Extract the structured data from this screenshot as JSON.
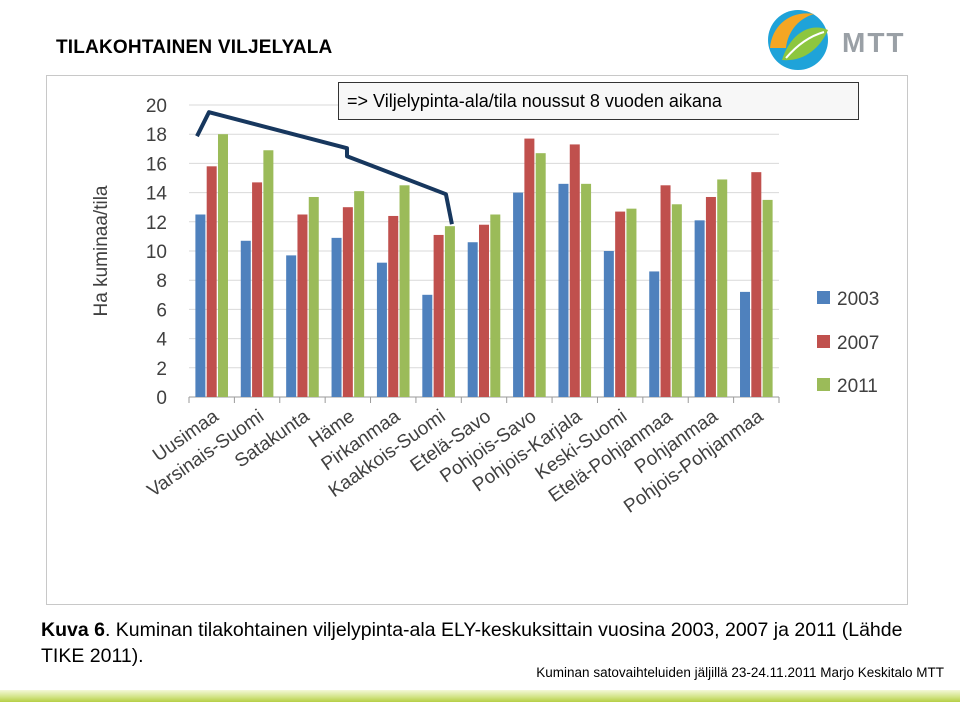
{
  "slide": {
    "title": "TILAKOHTAINEN VILJELYALA",
    "logo_text": "MTT",
    "callout": "=> Viljelypinta-ala/tila noussut 8 vuoden aikana",
    "caption_label": "Kuva 6",
    "caption_text": ". Kuminan tilakohtainen viljelypinta-ala ELY-keskuksittain vuosina 2003, 2007 ja 2011 (Lähde TIKE 2011).",
    "footer": "Kuminan satovaihteluiden jäljillä 23-24.11.2011 Marjo Keskitalo MTT"
  },
  "colors": {
    "series_2003": "#4f81bd",
    "series_2007": "#c0504d",
    "series_2011": "#9bbb59",
    "bracket": "#17375e",
    "gridline": "#d9d9d9",
    "axis_text": "#404040",
    "logo_text": "#9aa0a6"
  },
  "chart_data": {
    "type": "bar",
    "title": "",
    "xlabel": "",
    "ylabel": "Ha kuminaa/tila",
    "ylim": [
      0,
      20
    ],
    "yticks": [
      0,
      2,
      4,
      6,
      8,
      10,
      12,
      14,
      16,
      18,
      20
    ],
    "grid": true,
    "legend_position": "right",
    "categories": [
      "Uusimaa",
      "Varsinais-Suomi",
      "Satakunta",
      "Häme",
      "Pirkanmaa",
      "Kaakkois-Suomi",
      "Etelä-Savo",
      "Pohjois-Savo",
      "Pohjois-Karjala",
      "Keski-Suomi",
      "Etelä-Pohjanmaa",
      "Pohjanmaa",
      "Pohjois-Pohjanmaa"
    ],
    "series": [
      {
        "name": "2003",
        "values": [
          12.5,
          10.7,
          9.7,
          10.9,
          9.2,
          7.0,
          10.6,
          14.0,
          14.6,
          10.0,
          8.6,
          12.1,
          7.2
        ]
      },
      {
        "name": "2007",
        "values": [
          15.8,
          14.7,
          12.5,
          13.0,
          12.4,
          11.1,
          11.8,
          17.7,
          17.3,
          12.7,
          14.5,
          13.7,
          15.4
        ]
      },
      {
        "name": "2011",
        "values": [
          18.0,
          16.9,
          13.7,
          14.1,
          14.5,
          11.7,
          12.5,
          16.7,
          14.6,
          12.9,
          13.2,
          14.9,
          13.5
        ]
      }
    ],
    "annotation": {
      "text": "=> Viljelypinta-ala/tila noussut 8 vuoden aikana",
      "from_category": 0,
      "to_category": 5
    }
  }
}
